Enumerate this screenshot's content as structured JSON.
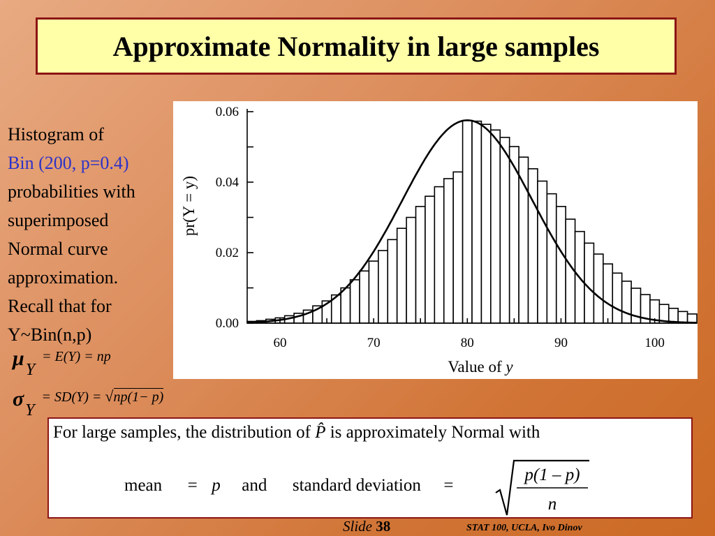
{
  "slide": {
    "title": "Approximate Normality in large samples",
    "slide_label": "Slide",
    "slide_number": "38",
    "credit": "STAT 100, UCLA, Ivo Dinov"
  },
  "left_text": {
    "line1": "Histogram of",
    "line2": "Bin (200, p=0.4)",
    "line3": "probabilities with",
    "line4": "superimposed",
    "line5": "Normal curve",
    "line6": "approximation.",
    "line7": "Recall that for",
    "line8": "Y~Bin(n,p)"
  },
  "formulas": {
    "mu_symbol": "μ",
    "mu_sub": "Y",
    "mu_expr": "= E(Y) = np",
    "sigma_symbol": "σ",
    "sigma_sub": "Y",
    "sigma_expr_left": "= SD(Y) = ",
    "sigma_expr_root": "np(1− p)"
  },
  "bottom_box": {
    "line1_a": "For large samples,  the distribution of ",
    "phat": "P̂",
    "line1_b": "  is approximately Normal with",
    "mean_label": "mean",
    "eq1": "=",
    "p_symbol": "p",
    "and_label": "and",
    "sd_label": "standard deviation",
    "eq2": "=",
    "frac_num": "p(1 – p)",
    "frac_den": "n"
  },
  "colors": {
    "title_bg": "#ffffa8",
    "border": "#8b1515",
    "blue_text": "#2d32c8"
  },
  "chart_data": {
    "type": "bar",
    "title": "",
    "xlabel": "Value of y",
    "ylabel": "pr(Y = y)",
    "binomial": {
      "n": 200,
      "p": 0.4
    },
    "x_range": [
      56.5,
      104.5
    ],
    "xlim": [
      56.5,
      104.5
    ],
    "ylim": [
      0,
      0.06
    ],
    "xticks": [
      60,
      70,
      80,
      90,
      100
    ],
    "yticks": [
      "0.00",
      "0.02",
      "0.04",
      "0.06"
    ],
    "x": [
      57,
      58,
      59,
      60,
      61,
      62,
      63,
      64,
      65,
      66,
      67,
      68,
      69,
      70,
      71,
      72,
      73,
      74,
      75,
      76,
      77,
      78,
      79,
      80,
      81,
      82,
      83,
      84,
      85,
      86,
      87,
      88,
      89,
      90,
      91,
      92,
      93,
      94,
      95,
      96,
      97,
      98,
      99,
      100,
      101,
      102,
      103,
      104
    ],
    "values": [
      0.0005,
      0.0007,
      0.0011,
      0.0015,
      0.0021,
      0.0028,
      0.0037,
      0.0049,
      0.0063,
      0.008,
      0.01,
      0.0123,
      0.0148,
      0.0176,
      0.0206,
      0.0237,
      0.0269,
      0.03,
      0.0331,
      0.036,
      0.0387,
      0.041,
      0.0429,
      0.0575,
      0.0573,
      0.0564,
      0.0548,
      0.0527,
      0.0501,
      0.0471,
      0.0438,
      0.0403,
      0.0367,
      0.0331,
      0.0295,
      0.026,
      0.0227,
      0.0196,
      0.0168,
      0.0142,
      0.0119,
      0.0099,
      0.0081,
      0.0066,
      0.0053,
      0.0042,
      0.0033,
      0.0026
    ],
    "normal_curve": {
      "mean": 80,
      "sd": 6.93
    },
    "grid": false
  }
}
